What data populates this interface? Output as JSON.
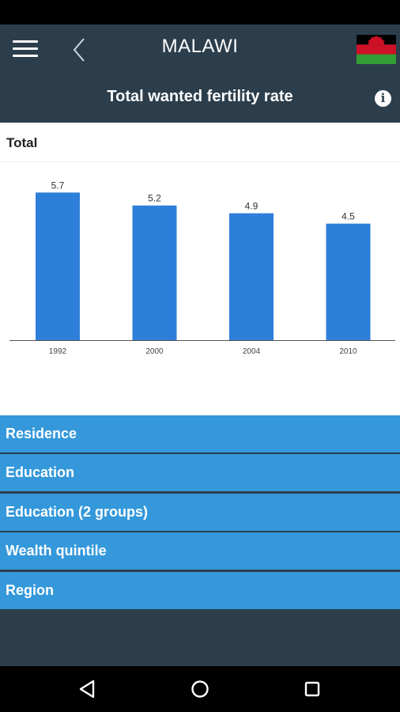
{
  "header": {
    "country": "MALAWI",
    "title": "Total wanted fertility rate",
    "info_icon": "i"
  },
  "section": {
    "label": "Total"
  },
  "chart_data": {
    "type": "bar",
    "categories": [
      "1992",
      "2000",
      "2004",
      "2010"
    ],
    "values": [
      5.7,
      5.2,
      4.9,
      4.5
    ],
    "data_labels": [
      "5.7",
      "5.2",
      "4.9",
      "4.5"
    ],
    "title": "",
    "xlabel": "",
    "ylabel": "",
    "ylim": [
      0,
      6.2
    ],
    "grid": false,
    "legend": "none",
    "bar_color": "#2e7fd9"
  },
  "accordion": {
    "items": [
      {
        "label": "Residence"
      },
      {
        "label": "Education"
      },
      {
        "label": "Education (2 groups)"
      },
      {
        "label": "Wealth quintile"
      },
      {
        "label": "Region"
      }
    ]
  },
  "colors": {
    "app_bar": "#2c3e4c",
    "accordion": "#3498db",
    "flag_black": "#000000",
    "flag_red": "#ce1126",
    "flag_green": "#339e35"
  },
  "icons": {
    "menu": "hamburger-icon",
    "back": "chevron-left-icon",
    "flag": "malawi-flag-icon",
    "info": "info-icon",
    "nav_back": "triangle-back-icon",
    "nav_home": "circle-home-icon",
    "nav_recents": "square-recents-icon"
  }
}
